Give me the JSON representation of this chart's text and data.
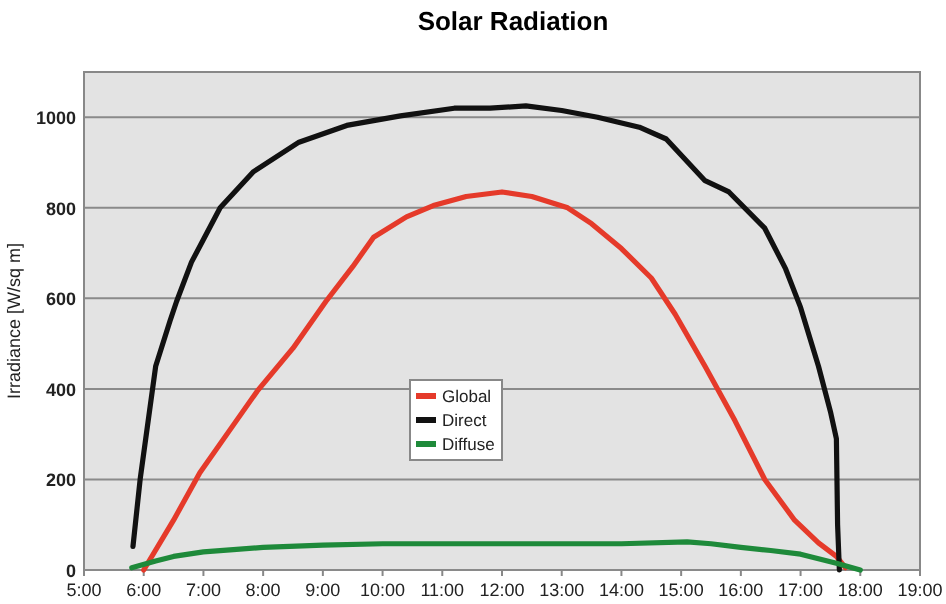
{
  "chart_data": {
    "type": "line",
    "title": "Solar Radiation",
    "ylabel": "Irradiance [W/sq m]",
    "xlim": [
      5,
      19
    ],
    "xticks": [
      {
        "value": 5,
        "label": "5:00"
      },
      {
        "value": 6,
        "label": "6:00"
      },
      {
        "value": 7,
        "label": "7:00"
      },
      {
        "value": 8,
        "label": "8:00"
      },
      {
        "value": 9,
        "label": "9:00"
      },
      {
        "value": 10,
        "label": "10:00"
      },
      {
        "value": 11,
        "label": "11:00"
      },
      {
        "value": 12,
        "label": "12:00"
      },
      {
        "value": 13,
        "label": "13:00"
      },
      {
        "value": 14,
        "label": "14:00"
      },
      {
        "value": 15,
        "label": "15:00"
      },
      {
        "value": 16,
        "label": "16:00"
      },
      {
        "value": 17,
        "label": "17:00"
      },
      {
        "value": 18,
        "label": "18:00"
      },
      {
        "value": 19,
        "label": "19:00"
      }
    ],
    "ylim": [
      0,
      1100
    ],
    "yticks": [
      0,
      200,
      400,
      600,
      800,
      1000
    ],
    "grid": "y",
    "legend": "center",
    "marker": "none",
    "line_style": "solid",
    "series": [
      {
        "name": "Global",
        "color": "#e53a2a",
        "x": [
          6.0,
          6.5,
          6.94,
          7.5,
          7.9,
          8.5,
          9.05,
          9.5,
          9.85,
          10.4,
          10.85,
          11.4,
          12.0,
          12.5,
          13.1,
          13.5,
          14.0,
          14.5,
          14.9,
          15.4,
          15.9,
          16.4,
          16.9,
          17.3,
          17.6,
          17.75
        ],
        "values": [
          0,
          110,
          215,
          320,
          395,
          490,
          593,
          670,
          735,
          780,
          805,
          825,
          835,
          825,
          800,
          765,
          710,
          645,
          565,
          450,
          330,
          200,
          110,
          60,
          30,
          5
        ]
      },
      {
        "name": "Direct",
        "color": "#111111",
        "x": [
          5.82,
          5.94,
          6.2,
          6.44,
          6.55,
          6.8,
          7.0,
          7.28,
          7.84,
          8.6,
          9.4,
          10.3,
          11.2,
          11.8,
          12.4,
          13.0,
          13.6,
          14.3,
          14.75,
          15.4,
          15.8,
          16.4,
          16.75,
          17.0,
          17.3,
          17.5,
          17.6,
          17.62,
          17.65
        ],
        "values": [
          52,
          200,
          450,
          550,
          593,
          680,
          730,
          800,
          880,
          945,
          982,
          1003,
          1020,
          1020,
          1025,
          1015,
          1000,
          978,
          952,
          860,
          835,
          755,
          665,
          580,
          450,
          350,
          290,
          100,
          0
        ]
      },
      {
        "name": "Diffuse",
        "color": "#1e8a3a",
        "x": [
          5.8,
          6.2,
          6.5,
          7.0,
          7.5,
          8.0,
          9.0,
          10.0,
          11.0,
          12.0,
          13.0,
          14.0,
          15.1,
          15.5,
          16.0,
          16.5,
          17.0,
          17.6,
          18.0
        ],
        "values": [
          5,
          20,
          30,
          40,
          45,
          50,
          55,
          58,
          58,
          58,
          58,
          58,
          62,
          58,
          50,
          43,
          35,
          15,
          0
        ]
      }
    ]
  }
}
